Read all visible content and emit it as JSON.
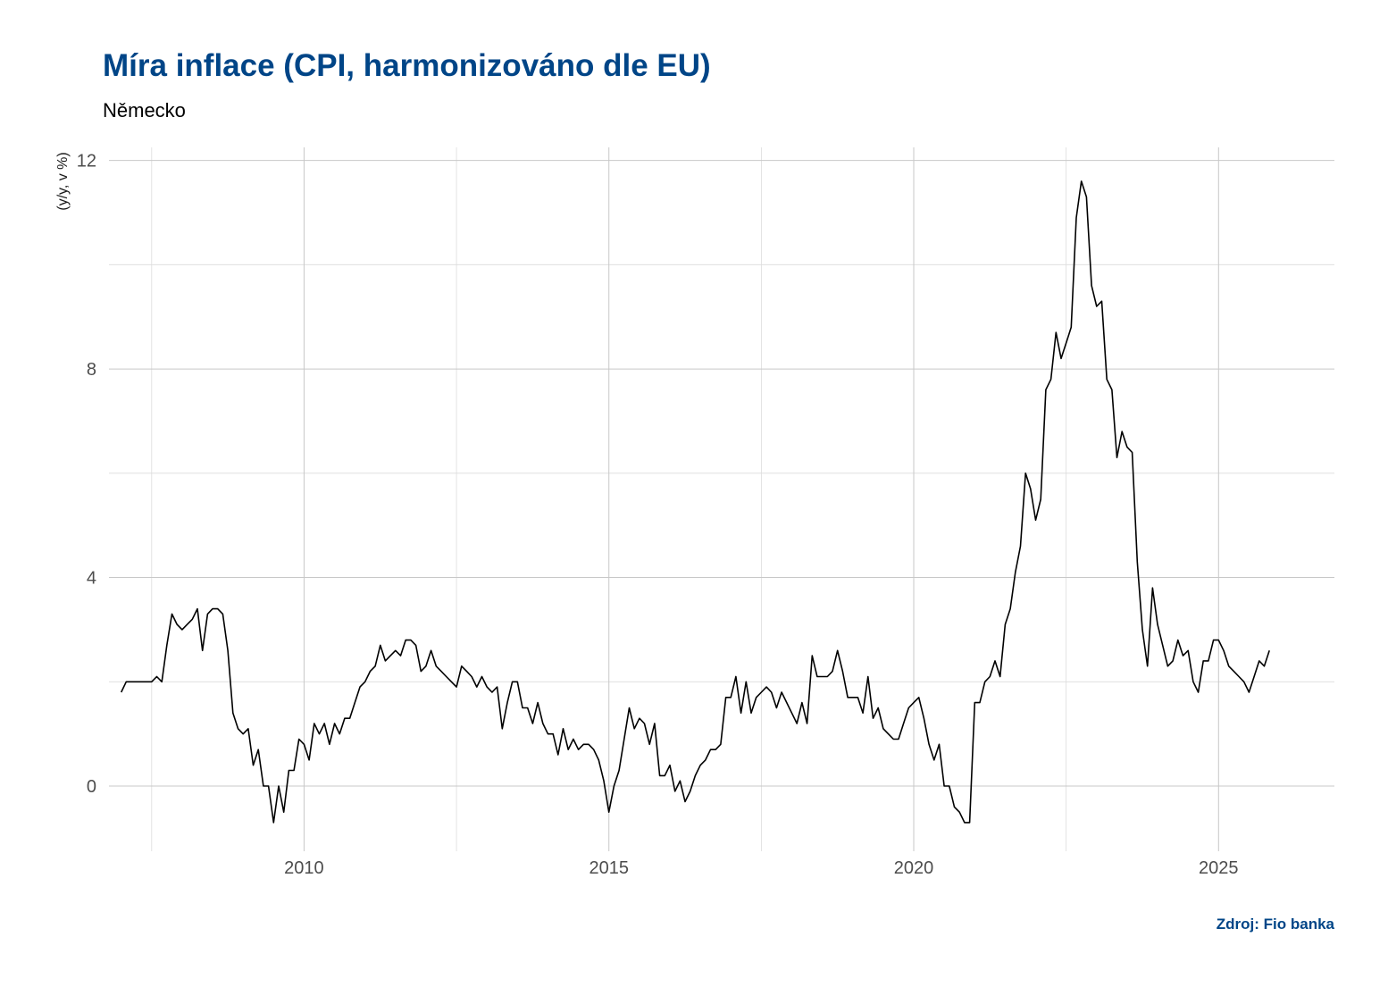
{
  "chart_data": {
    "type": "line",
    "title": "Míra inflace (CPI, harmonizováno dle EU)",
    "subtitle": "Německo",
    "ylabel": "(y/y, v %)",
    "xlabel": "",
    "caption": "Zdroj: Fio banka",
    "xlim": [
      2006.8,
      2026.9
    ],
    "ylim": [
      -1.25,
      12.25
    ],
    "x_ticks": [
      2010,
      2015,
      2020,
      2025
    ],
    "y_ticks": [
      0,
      4,
      8,
      12
    ],
    "grid": true,
    "line_color": "#000000",
    "start_year": 2007,
    "frequency": "monthly",
    "series": [
      {
        "values": [
          1.8,
          2.0,
          2.0,
          2.0,
          2.0,
          2.0,
          2.0,
          2.1,
          2.0,
          2.7,
          3.3,
          3.1,
          3.0,
          3.1,
          3.2,
          3.4,
          2.6,
          3.3,
          3.4,
          3.4,
          3.3,
          2.6,
          1.4,
          1.1,
          1.0,
          1.1,
          0.4,
          0.7,
          0.0,
          0.0,
          -0.7,
          0.0,
          -0.5,
          0.3,
          0.3,
          0.9,
          0.8,
          0.5,
          1.2,
          1.0,
          1.2,
          0.8,
          1.2,
          1.0,
          1.3,
          1.3,
          1.6,
          1.9,
          2.0,
          2.2,
          2.3,
          2.7,
          2.4,
          2.5,
          2.6,
          2.5,
          2.8,
          2.8,
          2.7,
          2.2,
          2.3,
          2.6,
          2.3,
          2.2,
          2.1,
          2.0,
          1.9,
          2.3,
          2.2,
          2.1,
          1.9,
          2.1,
          1.9,
          1.8,
          1.9,
          1.1,
          1.6,
          2.0,
          2.0,
          1.5,
          1.5,
          1.2,
          1.6,
          1.2,
          1.0,
          1.0,
          0.6,
          1.1,
          0.7,
          0.9,
          0.7,
          0.8,
          0.8,
          0.7,
          0.5,
          0.1,
          -0.5,
          0.0,
          0.3,
          0.9,
          1.5,
          1.1,
          1.3,
          1.2,
          0.8,
          1.2,
          0.2,
          0.2,
          0.4,
          -0.1,
          0.1,
          -0.3,
          -0.1,
          0.2,
          0.4,
          0.5,
          0.7,
          0.7,
          0.8,
          1.7,
          1.7,
          2.1,
          1.4,
          2.0,
          1.4,
          1.7,
          1.8,
          1.9,
          1.8,
          1.5,
          1.8,
          1.6,
          1.4,
          1.2,
          1.6,
          1.2,
          2.5,
          2.1,
          2.1,
          2.1,
          2.2,
          2.6,
          2.2,
          1.7,
          1.7,
          1.7,
          1.4,
          2.1,
          1.3,
          1.5,
          1.1,
          1.0,
          0.9,
          0.9,
          1.2,
          1.5,
          1.6,
          1.7,
          1.3,
          0.8,
          0.5,
          0.8,
          0.0,
          0.0,
          -0.4,
          -0.5,
          -0.7,
          -0.7,
          1.6,
          1.6,
          2.0,
          2.1,
          2.4,
          2.1,
          3.1,
          3.4,
          4.1,
          4.6,
          6.0,
          5.7,
          5.1,
          5.5,
          7.6,
          7.8,
          8.7,
          8.2,
          8.5,
          8.8,
          10.9,
          11.6,
          11.3,
          9.6,
          9.2,
          9.3,
          7.8,
          7.6,
          6.3,
          6.8,
          6.5,
          6.4,
          4.3,
          3.0,
          2.3,
          3.8,
          3.1,
          2.7,
          2.3,
          2.4,
          2.8,
          2.5,
          2.6,
          2.0,
          1.8,
          2.4,
          2.4,
          2.8,
          2.8,
          2.6,
          2.3,
          2.2,
          2.1,
          2.0,
          1.8,
          2.1,
          2.4,
          2.3,
          2.6
        ]
      }
    ]
  }
}
